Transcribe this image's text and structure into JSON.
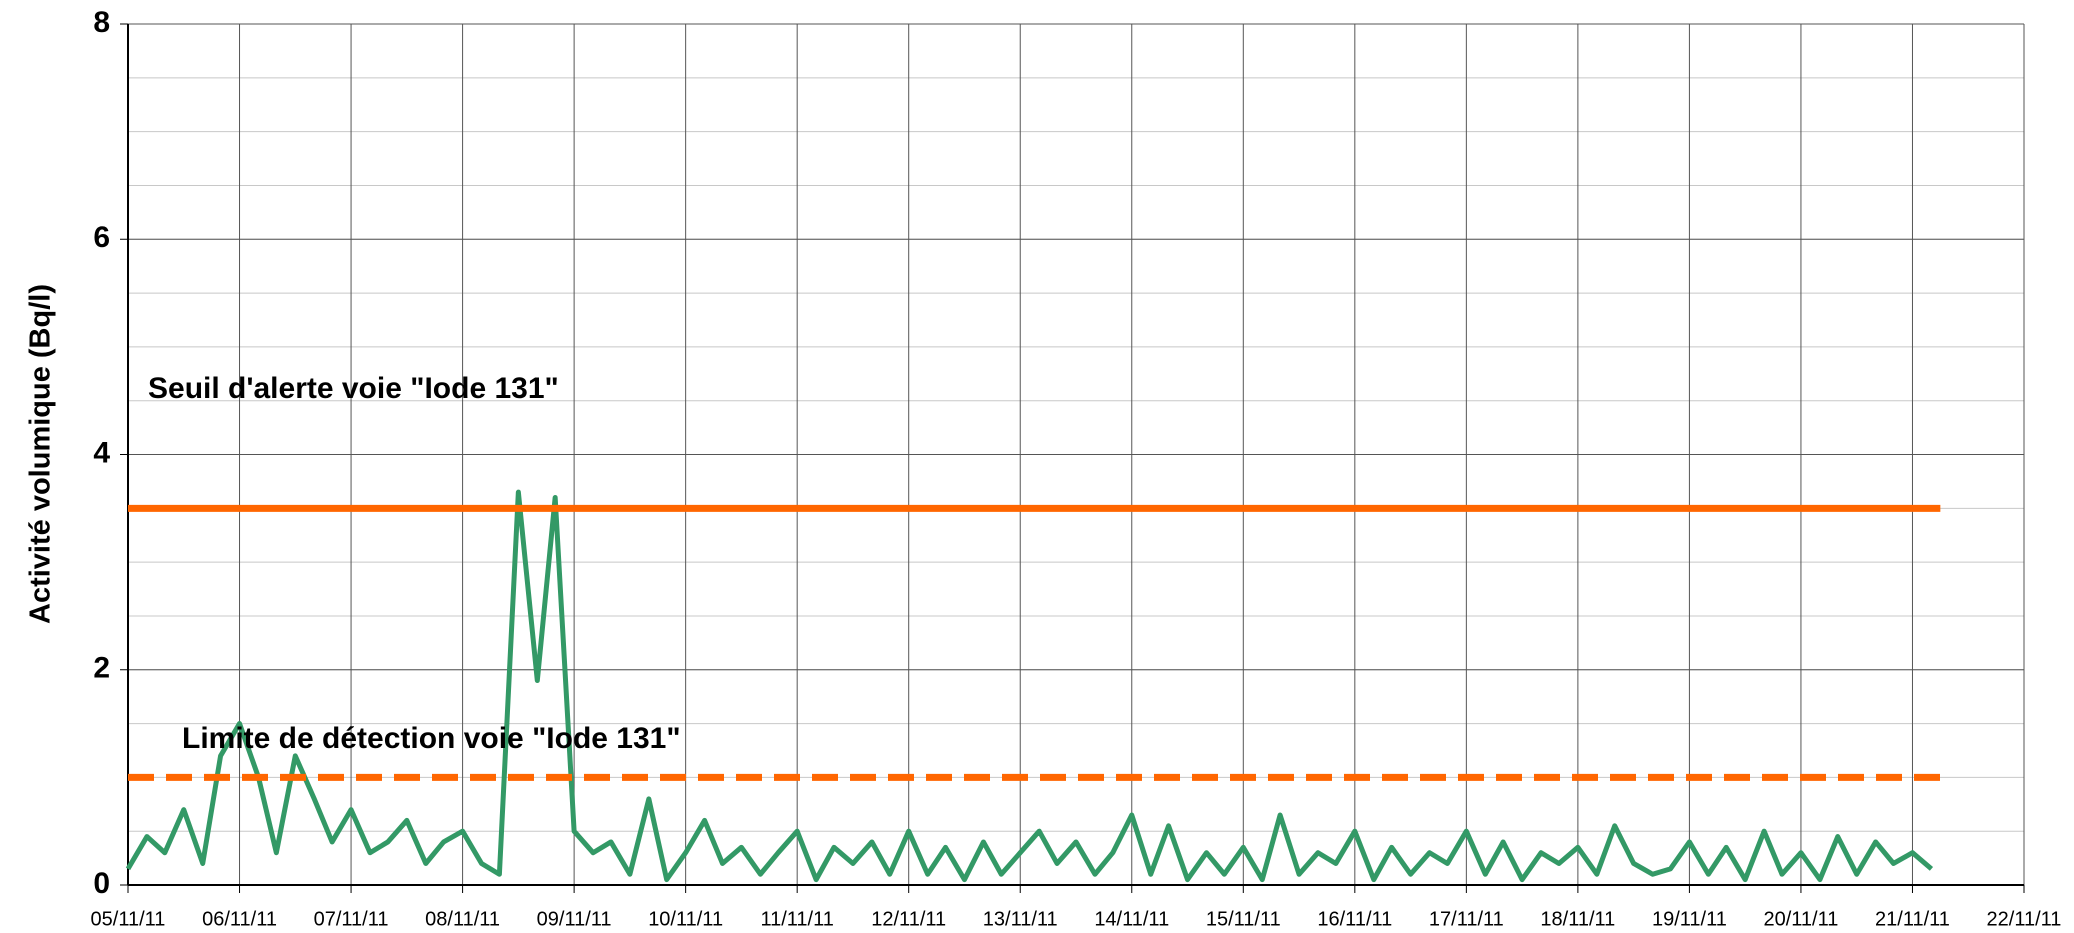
{
  "chart_data": {
    "type": "line",
    "y_label": "Activité volumique (Bq/l)",
    "xlim": [
      0,
      17
    ],
    "ylim": [
      0,
      8
    ],
    "yticks": [
      0,
      2,
      4,
      6,
      8
    ],
    "grid": true,
    "minor_grid_step": 0.5,
    "xticks": [
      {
        "value": 0,
        "label": "05/11/11"
      },
      {
        "value": 1,
        "label": "06/11/11"
      },
      {
        "value": 2,
        "label": "07/11/11"
      },
      {
        "value": 3,
        "label": "08/11/11"
      },
      {
        "value": 4,
        "label": "09/11/11"
      },
      {
        "value": 5,
        "label": "10/11/11"
      },
      {
        "value": 6,
        "label": "11/11/11"
      },
      {
        "value": 7,
        "label": "12/11/11"
      },
      {
        "value": 8,
        "label": "13/11/11"
      },
      {
        "value": 9,
        "label": "14/11/11"
      },
      {
        "value": 10,
        "label": "15/11/11"
      },
      {
        "value": 11,
        "label": "16/11/11"
      },
      {
        "value": 12,
        "label": "17/11/11"
      },
      {
        "value": 13,
        "label": "18/11/11"
      },
      {
        "value": 14,
        "label": "19/11/11"
      },
      {
        "value": 15,
        "label": "20/11/11"
      },
      {
        "value": 16,
        "label": "21/11/11"
      },
      {
        "value": 17,
        "label": "22/11/11"
      }
    ],
    "series": [
      {
        "color": "#339966",
        "x": [
          0,
          0.17,
          0.33,
          0.5,
          0.67,
          0.83,
          1,
          1.17,
          1.33,
          1.5,
          1.67,
          1.83,
          2,
          2.17,
          2.33,
          2.5,
          2.67,
          2.83,
          3,
          3.17,
          3.33,
          3.5,
          3.67,
          3.83,
          4,
          4.17,
          4.33,
          4.5,
          4.67,
          4.83,
          5,
          5.17,
          5.33,
          5.5,
          5.67,
          5.83,
          6,
          6.17,
          6.33,
          6.5,
          6.67,
          6.83,
          7,
          7.17,
          7.33,
          7.5,
          7.67,
          7.83,
          8,
          8.17,
          8.33,
          8.5,
          8.67,
          8.83,
          9,
          9.17,
          9.33,
          9.5,
          9.67,
          9.83,
          10,
          10.17,
          10.33,
          10.5,
          10.67,
          10.83,
          11,
          11.17,
          11.33,
          11.5,
          11.67,
          11.83,
          12,
          12.17,
          12.33,
          12.5,
          12.67,
          12.83,
          13,
          13.17,
          13.33,
          13.5,
          13.67,
          13.83,
          14,
          14.17,
          14.33,
          14.5,
          14.67,
          14.83,
          15,
          15.17,
          15.33,
          15.5,
          15.67,
          15.83,
          16,
          16.17
        ],
        "values": [
          0.15,
          0.45,
          0.3,
          0.7,
          0.2,
          1.2,
          1.5,
          1.0,
          0.3,
          1.2,
          0.8,
          0.4,
          0.7,
          0.3,
          0.4,
          0.6,
          0.2,
          0.4,
          0.5,
          0.2,
          0.1,
          3.65,
          1.9,
          3.6,
          0.5,
          0.3,
          0.4,
          0.1,
          0.8,
          0.05,
          0.3,
          0.6,
          0.2,
          0.35,
          0.1,
          0.3,
          0.5,
          0.05,
          0.35,
          0.2,
          0.4,
          0.1,
          0.5,
          0.1,
          0.35,
          0.05,
          0.4,
          0.1,
          0.3,
          0.5,
          0.2,
          0.4,
          0.1,
          0.3,
          0.65,
          0.1,
          0.55,
          0.05,
          0.3,
          0.1,
          0.35,
          0.05,
          0.65,
          0.1,
          0.3,
          0.2,
          0.5,
          0.05,
          0.35,
          0.1,
          0.3,
          0.2,
          0.5,
          0.1,
          0.4,
          0.05,
          0.3,
          0.2,
          0.35,
          0.1,
          0.55,
          0.2,
          0.1,
          0.15,
          0.4,
          0.1,
          0.35,
          0.05,
          0.5,
          0.1,
          0.3,
          0.05,
          0.45,
          0.1,
          0.4,
          0.2,
          0.3,
          0.15
        ]
      },
      {
        "name": "Seuil d'alerte voie \"Iode 131\"",
        "color": "#ff6600",
        "x": [
          0,
          16.25
        ],
        "values": [
          3.5,
          3.5
        ]
      },
      {
        "name": "Limite de détection voie \"Iode 131\"",
        "color": "#ff6600",
        "dashed": true,
        "x": [
          0,
          16.25
        ],
        "values": [
          1,
          1
        ]
      }
    ]
  }
}
